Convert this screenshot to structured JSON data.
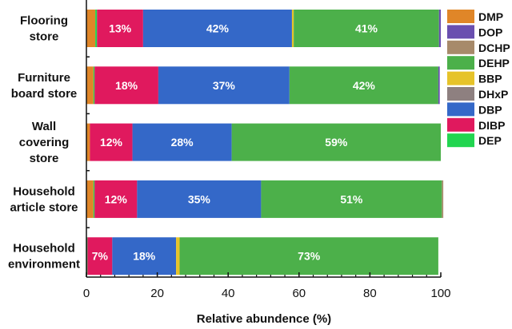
{
  "chart_data": {
    "type": "bar",
    "orientation": "horizontal",
    "stacked": true,
    "title": "",
    "xlabel": "Relative abundence (%)",
    "ylabel": "",
    "xlim": [
      0,
      100
    ],
    "xticks": [
      0,
      20,
      40,
      60,
      80,
      100
    ],
    "minor_tick_step": 4,
    "grid": false,
    "legend_position": "right",
    "categories": [
      [
        "Flooring",
        "store"
      ],
      [
        "Furniture",
        "board store"
      ],
      [
        "Wall",
        "covering",
        "store"
      ],
      [
        "Household",
        "article store"
      ],
      [
        "Household",
        "environment"
      ]
    ],
    "stack_order": [
      "DMP",
      "DEP",
      "DIBP",
      "DBP",
      "DHxP",
      "BBP",
      "DEHP",
      "DCHP",
      "DOP"
    ],
    "series": [
      {
        "name": "DMP",
        "color": "#E08628",
        "values": [
          2.5,
          2.0,
          1.0,
          2.0,
          0.0
        ]
      },
      {
        "name": "DEP",
        "color": "#22D550",
        "values": [
          0.5,
          0.3,
          0.0,
          0.3,
          0.3
        ]
      },
      {
        "name": "DIBP",
        "color": "#E0195E",
        "values": [
          13,
          18,
          12,
          12,
          7
        ]
      },
      {
        "name": "DBP",
        "color": "#3468C8",
        "values": [
          42,
          37,
          28,
          35,
          18
        ]
      },
      {
        "name": "DHxP",
        "color": "#8E8080",
        "values": [
          0.0,
          0.0,
          0.0,
          0.0,
          0.0
        ]
      },
      {
        "name": "BBP",
        "color": "#E6C32A",
        "values": [
          0.5,
          0.0,
          0.0,
          0.0,
          1.0
        ]
      },
      {
        "name": "DEHP",
        "color": "#4CB04A",
        "values": [
          41,
          42,
          59,
          51,
          73
        ]
      },
      {
        "name": "DCHP",
        "color": "#A78A6A",
        "values": [
          0.0,
          0.0,
          0.0,
          0.4,
          0.0
        ]
      },
      {
        "name": "DOP",
        "color": "#6A4FB0",
        "values": [
          0.5,
          0.4,
          0.0,
          0.0,
          0.0
        ]
      }
    ],
    "data_labels": [
      [
        {
          "series": "DIBP",
          "text": "13%"
        },
        {
          "series": "DBP",
          "text": "42%"
        },
        {
          "series": "DEHP",
          "text": "41%"
        }
      ],
      [
        {
          "series": "DIBP",
          "text": "18%"
        },
        {
          "series": "DBP",
          "text": "37%"
        },
        {
          "series": "DEHP",
          "text": "42%"
        }
      ],
      [
        {
          "series": "DIBP",
          "text": "12%"
        },
        {
          "series": "DBP",
          "text": "28%"
        },
        {
          "series": "DEHP",
          "text": "59%"
        }
      ],
      [
        {
          "series": "DIBP",
          "text": "12%"
        },
        {
          "series": "DBP",
          "text": "35%"
        },
        {
          "series": "DEHP",
          "text": "51%"
        }
      ],
      [
        {
          "series": "DIBP",
          "text": "7%"
        },
        {
          "series": "DBP",
          "text": "18%"
        },
        {
          "series": "DEHP",
          "text": "73%"
        }
      ]
    ],
    "legend": [
      {
        "name": "DMP",
        "color": "#E08628"
      },
      {
        "name": "DOP",
        "color": "#6A4FB0"
      },
      {
        "name": "DCHP",
        "color": "#A78A6A"
      },
      {
        "name": "DEHP",
        "color": "#4CB04A"
      },
      {
        "name": "BBP",
        "color": "#E6C32A"
      },
      {
        "name": "DHxP",
        "color": "#8E8080"
      },
      {
        "name": "DBP",
        "color": "#3468C8"
      },
      {
        "name": "DIBP",
        "color": "#E0195E"
      },
      {
        "name": "DEP",
        "color": "#22D550"
      }
    ]
  }
}
